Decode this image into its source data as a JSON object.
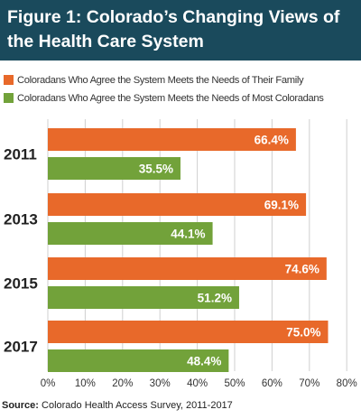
{
  "title": "Figure 1: Colorado’s Changing Views of the Health Care System",
  "source": {
    "label": "Source:",
    "text": " Colorado Health Access Survey, 2011-2017"
  },
  "colors": {
    "header": "#1a4a5c",
    "family": "#e8692a",
    "most": "#72a23a"
  },
  "chart_data": {
    "type": "bar",
    "orientation": "horizontal",
    "categories": [
      "2011",
      "2013",
      "2015",
      "2017"
    ],
    "series": [
      {
        "name": "Coloradans Who Agree the System Meets the Needs of Their Family",
        "values": [
          66.4,
          69.1,
          74.6,
          75.0
        ],
        "labels": [
          "66.4%",
          "69.1%",
          "74.6%",
          "75.0%"
        ],
        "color": "#e8692a"
      },
      {
        "name": "Coloradans Who Agree the System Meets the Needs of Most Coloradans",
        "values": [
          35.5,
          44.1,
          51.2,
          48.4
        ],
        "labels": [
          "35.5%",
          "44.1%",
          "51.2%",
          "48.4%"
        ],
        "color": "#72a23a"
      }
    ],
    "xlim": [
      0,
      80
    ],
    "xticks": [
      "0%",
      "10%",
      "20%",
      "30%",
      "40%",
      "50%",
      "60%",
      "70%",
      "80%"
    ],
    "grid": true,
    "legend": "top"
  }
}
